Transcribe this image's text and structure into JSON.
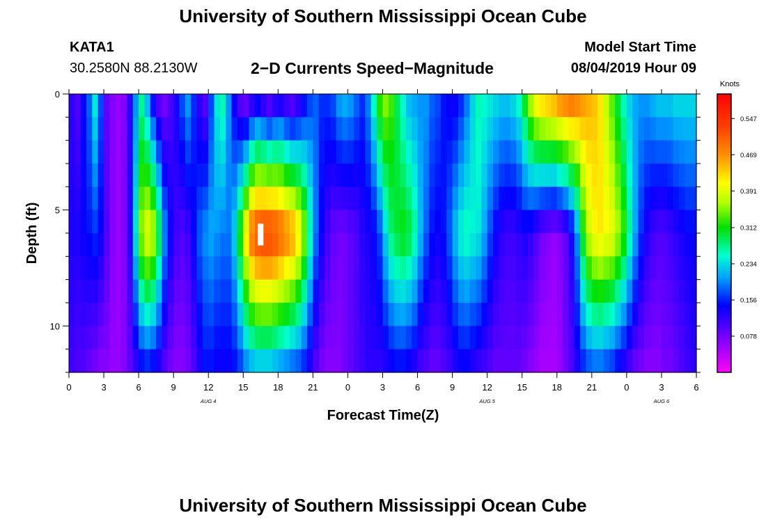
{
  "page": {
    "title_top": "University of Southern Mississippi Ocean Cube",
    "title_bottom": "University of Southern Mississippi Ocean Cube",
    "station_id": "KATA1",
    "station_coords": "30.2580N 88.2130W",
    "subtitle": "2−D Currents Speed−Magnitude",
    "model_start_label": "Model Start Time",
    "model_start_value": "08/04/2019 Hour 09"
  },
  "chart_data": {
    "type": "heatmap",
    "title": "2-D Currents Speed-Magnitude",
    "xlabel": "Forecast Time(Z)",
    "ylabel": "Depth (ft)",
    "x_hours_range": [
      0,
      54
    ],
    "x_tick_step_hours": 3,
    "x_tick_labels": [
      "0",
      "3",
      "6",
      "9",
      "12",
      "15",
      "18",
      "21",
      "0",
      "3",
      "6",
      "9",
      "12",
      "15",
      "18",
      "21",
      "0",
      "3",
      "6"
    ],
    "date_labels": [
      {
        "label": "AUG 4",
        "hour": 12
      },
      {
        "label": "AUG 5",
        "hour": 36
      },
      {
        "label": "AUG 6",
        "hour": 51
      }
    ],
    "y_range_ft": [
      0,
      12
    ],
    "y_tick_labels": [
      0,
      5,
      10
    ],
    "colorbar": {
      "title": "Knots",
      "min": 0.0,
      "max": 0.6,
      "tick_labels": [
        "0.547",
        "0.469",
        "0.391",
        "0.312",
        "0.234",
        "0.156",
        "0.078"
      ]
    },
    "depth_rows_ft": [
      0.5,
      1.5,
      2.5,
      3.5,
      4.5,
      5.5,
      6.5,
      7.5,
      8.5,
      9.5,
      10.5,
      11.5
    ],
    "columns_per_hour": 2,
    "columns_count": 108,
    "surface_profile": [
      0.12,
      0.1,
      0.14,
      0.18,
      0.24,
      0.17,
      0.09,
      0.07,
      0.06,
      0.07,
      0.12,
      0.2,
      0.27,
      0.22,
      0.15,
      0.1,
      0.08,
      0.1,
      0.13,
      0.17,
      0.2,
      0.16,
      0.12,
      0.1,
      0.17,
      0.24,
      0.26,
      0.2,
      0.14,
      0.1,
      0.09,
      0.12,
      0.14,
      0.12,
      0.1,
      0.12,
      0.13,
      0.11,
      0.1,
      0.12,
      0.15,
      0.17,
      0.18,
      0.16,
      0.16,
      0.17,
      0.2,
      0.21,
      0.2,
      0.18,
      0.16,
      0.19,
      0.25,
      0.32,
      0.35,
      0.33,
      0.29,
      0.25,
      0.22,
      0.21,
      0.2,
      0.2,
      0.18,
      0.17,
      0.15,
      0.14,
      0.14,
      0.16,
      0.19,
      0.23,
      0.26,
      0.25,
      0.24,
      0.23,
      0.22,
      0.22,
      0.23,
      0.25,
      0.3,
      0.36,
      0.4,
      0.42,
      0.43,
      0.44,
      0.46,
      0.47,
      0.48,
      0.47,
      0.46,
      0.45,
      0.44,
      0.42,
      0.38,
      0.34,
      0.3,
      0.26,
      0.23,
      0.21,
      0.2,
      0.2,
      0.21,
      0.22,
      0.22,
      0.22,
      0.23,
      0.23,
      0.23,
      0.23
    ],
    "mid_profile": [
      0.13,
      0.13,
      0.14,
      0.15,
      0.16,
      0.14,
      0.1,
      0.07,
      0.06,
      0.07,
      0.12,
      0.24,
      0.36,
      0.4,
      0.38,
      0.3,
      0.2,
      0.14,
      0.11,
      0.1,
      0.11,
      0.14,
      0.18,
      0.2,
      0.21,
      0.2,
      0.19,
      0.19,
      0.23,
      0.32,
      0.42,
      0.5,
      0.53,
      0.54,
      0.54,
      0.53,
      0.51,
      0.49,
      0.47,
      0.43,
      0.36,
      0.27,
      0.19,
      0.14,
      0.11,
      0.09,
      0.08,
      0.08,
      0.09,
      0.1,
      0.12,
      0.13,
      0.14,
      0.17,
      0.23,
      0.28,
      0.3,
      0.31,
      0.3,
      0.27,
      0.22,
      0.18,
      0.15,
      0.14,
      0.15,
      0.18,
      0.22,
      0.25,
      0.26,
      0.25,
      0.24,
      0.21,
      0.17,
      0.14,
      0.12,
      0.11,
      0.11,
      0.12,
      0.13,
      0.12,
      0.1,
      0.08,
      0.07,
      0.06,
      0.07,
      0.09,
      0.13,
      0.2,
      0.31,
      0.38,
      0.41,
      0.42,
      0.41,
      0.4,
      0.37,
      0.33,
      0.27,
      0.21,
      0.16,
      0.13,
      0.11,
      0.1,
      0.1,
      0.11,
      0.12,
      0.13,
      0.14,
      0.14
    ],
    "bottom_profile": [
      0.11,
      0.1,
      0.1,
      0.09,
      0.08,
      0.07,
      0.07,
      0.06,
      0.06,
      0.07,
      0.09,
      0.12,
      0.15,
      0.16,
      0.15,
      0.13,
      0.1,
      0.08,
      0.07,
      0.07,
      0.08,
      0.1,
      0.13,
      0.15,
      0.15,
      0.14,
      0.14,
      0.14,
      0.15,
      0.17,
      0.2,
      0.22,
      0.23,
      0.23,
      0.23,
      0.22,
      0.21,
      0.2,
      0.19,
      0.18,
      0.16,
      0.13,
      0.1,
      0.08,
      0.07,
      0.07,
      0.07,
      0.08,
      0.09,
      0.1,
      0.11,
      0.12,
      0.12,
      0.12,
      0.13,
      0.14,
      0.15,
      0.15,
      0.14,
      0.13,
      0.11,
      0.1,
      0.09,
      0.09,
      0.1,
      0.11,
      0.13,
      0.14,
      0.14,
      0.13,
      0.12,
      0.11,
      0.1,
      0.09,
      0.09,
      0.09,
      0.09,
      0.09,
      0.08,
      0.07,
      0.06,
      0.05,
      0.05,
      0.05,
      0.06,
      0.08,
      0.1,
      0.13,
      0.16,
      0.18,
      0.19,
      0.19,
      0.18,
      0.17,
      0.15,
      0.13,
      0.11,
      0.09,
      0.08,
      0.07,
      0.07,
      0.07,
      0.08,
      0.08,
      0.09,
      0.1,
      0.11,
      0.12
    ],
    "highlight_marker": {
      "hour": 16.5,
      "depth_ft_range": [
        5.5,
        6.5
      ],
      "color": "#ffffff"
    }
  }
}
